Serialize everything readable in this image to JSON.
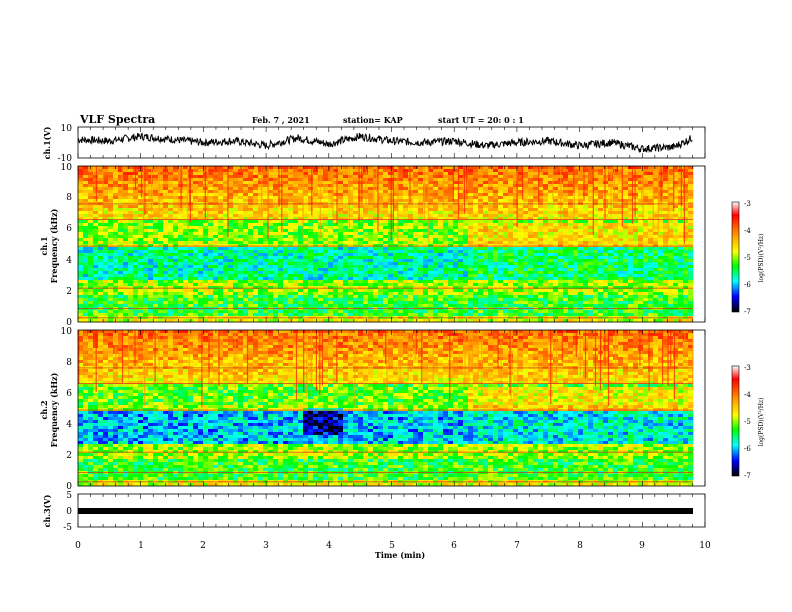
{
  "header": {
    "title": "VLF Spectra",
    "date": "Feb. 7 , 2021",
    "station": "station= KAP",
    "start": "start  UT =   20: 0  : 1"
  },
  "chart_data": [
    {
      "type": "line",
      "panel": "ch1-waveform",
      "ylabel": "ch.1(V)",
      "ylim": [
        -10,
        10
      ],
      "yticks": [
        "10",
        "-10"
      ],
      "xlim": [
        0,
        10
      ],
      "description_values": {
        "x_min": [
          0,
          0.5,
          1,
          1.5,
          2,
          2.5,
          3,
          3.5,
          4,
          4.5,
          5,
          5.5,
          6,
          6.5,
          7,
          7.5,
          8,
          8.5,
          9,
          9.5,
          9.8
        ],
        "y_V": [
          2,
          1,
          4,
          2,
          0,
          1,
          -2,
          3,
          -1,
          4,
          1,
          0,
          1,
          -2,
          0,
          1,
          -2,
          0,
          -4,
          -3,
          3
        ]
      }
    },
    {
      "type": "heatmap",
      "panel": "ch1-spectrogram",
      "ylabel": "ch.1\nFrequency  (kHz)",
      "ylim": [
        0,
        10
      ],
      "yticks": [
        "0",
        "2",
        "4",
        "6",
        "8",
        "10"
      ],
      "xlim": [
        0,
        10
      ],
      "colorbar": {
        "label": "log(PSD)(V²/Hz)",
        "range": [
          -7,
          -3
        ],
        "ticks": [
          "-3",
          "-4",
          "-5",
          "-6",
          "-7"
        ]
      }
    },
    {
      "type": "heatmap",
      "panel": "ch2-spectrogram",
      "ylabel": "ch.2\nFrequency  (kHz)",
      "ylim": [
        0,
        10
      ],
      "yticks": [
        "0",
        "2",
        "4",
        "6",
        "8",
        "10"
      ],
      "xlim": [
        0,
        10
      ],
      "colorbar": {
        "label": "log(PSD)(V²/Hz)",
        "range": [
          -7,
          -3
        ],
        "ticks": [
          "-3",
          "-4",
          "-5",
          "-6",
          "-7"
        ]
      }
    },
    {
      "type": "line",
      "panel": "ch3-waveform",
      "ylabel": "ch.3(V)",
      "ylim": [
        -5,
        5
      ],
      "yticks": [
        "5",
        "0",
        "-5"
      ],
      "xlim": [
        0,
        10
      ],
      "constant_value": -1
    }
  ],
  "xaxis": {
    "label": "Time  (min)",
    "ticks": [
      "0",
      "1",
      "2",
      "3",
      "4",
      "5",
      "6",
      "7",
      "8",
      "9",
      "10"
    ]
  }
}
